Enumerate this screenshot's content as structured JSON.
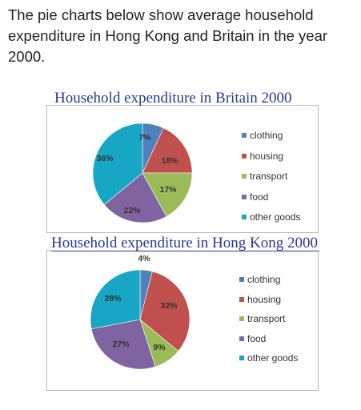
{
  "intro_text": "The pie charts below show average household expenditure in Hong Kong and Britain in the year 2000.",
  "colors": {
    "clothing": "#4f81bd",
    "housing": "#c0504d",
    "transport": "#9bbb59",
    "food": "#8064a2",
    "other goods": "#17a6c4"
  },
  "chart_data": [
    {
      "type": "pie",
      "title": "Household expenditure in Britain 2000",
      "categories": [
        "clothing",
        "housing",
        "transport",
        "food",
        "other goods"
      ],
      "values": [
        7,
        18,
        17,
        22,
        36
      ],
      "data_labels": [
        "7%",
        "18%",
        "17%",
        "22%",
        "36%"
      ],
      "legend": [
        "clothing",
        "housing",
        "transport",
        "food",
        "other goods"
      ],
      "legend_position": "right"
    },
    {
      "type": "pie",
      "title": "Household expenditure in Hong Kong 2000",
      "categories": [
        "clothing",
        "housing",
        "transport",
        "food",
        "other goods"
      ],
      "values": [
        4,
        32,
        9,
        27,
        28
      ],
      "data_labels": [
        "4%",
        "32%",
        "9%",
        "27%",
        "28%"
      ],
      "legend": [
        "clothing",
        "housing",
        "transport",
        "food",
        "other goods"
      ],
      "legend_position": "right"
    }
  ]
}
